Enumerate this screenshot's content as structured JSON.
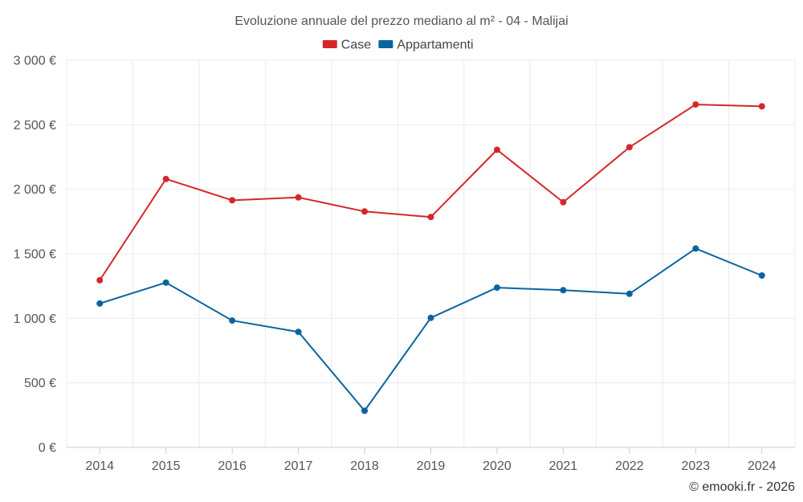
{
  "chart_data": {
    "type": "line",
    "title": "Evoluzione annuale del prezzo mediano al m² - 04 - Malijai",
    "categories": [
      "2014",
      "2015",
      "2016",
      "2017",
      "2018",
      "2019",
      "2020",
      "2021",
      "2022",
      "2023",
      "2024"
    ],
    "series": [
      {
        "name": "Case",
        "color": "#d62728",
        "values": [
          1295,
          2080,
          1915,
          1937,
          1828,
          1785,
          2306,
          1900,
          2326,
          2657,
          2643
        ]
      },
      {
        "name": "Appartamenti",
        "color": "#0a64a0",
        "values": [
          1115,
          1277,
          983,
          895,
          284,
          1004,
          1238,
          1218,
          1190,
          1541,
          1332
        ]
      }
    ],
    "ylim": [
      0,
      3000
    ],
    "yticks": [
      0,
      500,
      1000,
      1500,
      2000,
      2500,
      3000
    ],
    "ytick_labels": [
      "0 €",
      "500 €",
      "1 000 €",
      "1 500 €",
      "2 000 €",
      "2 500 €",
      "3 000 €"
    ],
    "xlabel": "",
    "ylabel": "",
    "grid": true,
    "legend_position": "top-center"
  },
  "credit": "© emooki.fr - 2026"
}
